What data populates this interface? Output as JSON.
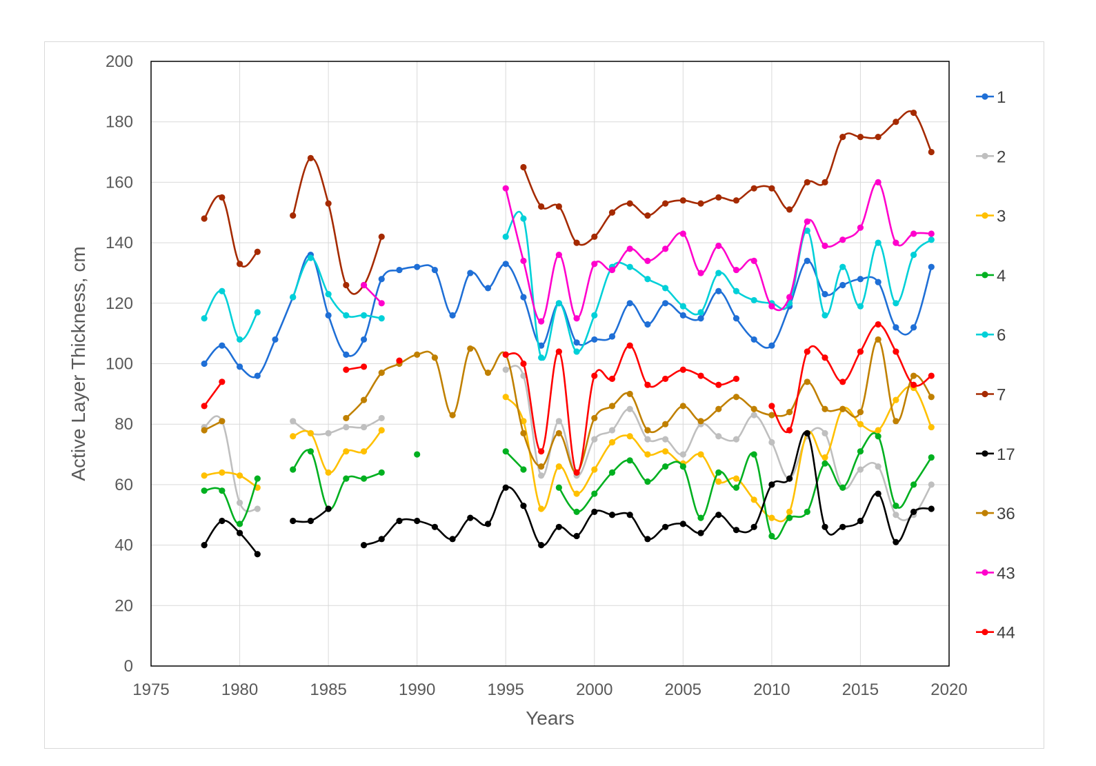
{
  "chart_data": {
    "type": "line",
    "title": "",
    "xlabel": "Years",
    "ylabel": "Active Layer Thickness, cm",
    "xlim": [
      1975,
      2020
    ],
    "ylim": [
      0,
      200
    ],
    "x_ticks": [
      1975,
      1980,
      1985,
      1990,
      1995,
      2000,
      2005,
      2010,
      2015,
      2020
    ],
    "y_ticks": [
      0,
      20,
      40,
      60,
      80,
      100,
      120,
      140,
      160,
      180,
      200
    ],
    "grid": true,
    "legend_position": "right",
    "series": [
      {
        "name": "1",
        "color": "#1f6fd6",
        "x": [
          1978,
          1979,
          1980,
          1981,
          1982,
          1983,
          1984,
          1985,
          1986,
          1987,
          1988,
          1989,
          1990,
          1991,
          1992,
          1993,
          1994,
          1995,
          1996,
          1997,
          1998,
          1999,
          2000,
          2001,
          2002,
          2003,
          2004,
          2005,
          2006,
          2007,
          2008,
          2009,
          2010,
          2011,
          2012,
          2013,
          2014,
          2015,
          2016,
          2017,
          2018,
          2019
        ],
        "y": [
          100,
          106,
          99,
          96,
          108,
          122,
          136,
          116,
          103,
          108,
          128,
          131,
          132,
          131,
          116,
          130,
          125,
          133,
          122,
          106,
          120,
          107,
          108,
          109,
          120,
          113,
          120,
          116,
          115,
          124,
          115,
          108,
          106,
          119,
          134,
          123,
          126,
          128,
          127,
          112,
          112,
          132
        ]
      },
      {
        "name": "2",
        "color": "#bfbfbf",
        "x": [
          1978,
          1979,
          1980,
          1981,
          null,
          1983,
          1984,
          1985,
          1986,
          1987,
          1988,
          null,
          1995,
          1996,
          1997,
          1998,
          1999,
          2000,
          2001,
          2002,
          2003,
          2004,
          2005,
          2006,
          2007,
          2008,
          2009,
          2010,
          2011,
          2012,
          2013,
          2014,
          2015,
          2016,
          2017,
          2018,
          2019
        ],
        "y": [
          79,
          81,
          54,
          52,
          null,
          81,
          77,
          77,
          79,
          79,
          82,
          null,
          98,
          96,
          63,
          81,
          63,
          75,
          78,
          85,
          75,
          75,
          70,
          80,
          76,
          75,
          83,
          74,
          62,
          76,
          77,
          59,
          65,
          66,
          50,
          50,
          60
        ]
      },
      {
        "name": "3",
        "color": "#ffc000",
        "x": [
          1978,
          1979,
          1980,
          1981,
          null,
          1983,
          1984,
          1985,
          1986,
          1987,
          1988,
          null,
          1995,
          1996,
          1997,
          1998,
          1999,
          2000,
          2001,
          2002,
          2003,
          2004,
          2005,
          2006,
          2007,
          2008,
          2009,
          2010,
          2011,
          2012,
          2013,
          2014,
          2015,
          2016,
          2017,
          2018,
          2019
        ],
        "y": [
          63,
          64,
          63,
          59,
          null,
          76,
          77,
          64,
          71,
          71,
          78,
          null,
          89,
          81,
          52,
          66,
          57,
          65,
          74,
          76,
          70,
          71,
          67,
          70,
          61,
          62,
          55,
          49,
          51,
          77,
          69,
          85,
          80,
          78,
          88,
          92,
          79
        ]
      },
      {
        "name": "4",
        "color": "#00b020",
        "x": [
          1978,
          1979,
          1980,
          1981,
          null,
          1983,
          1984,
          1985,
          1986,
          1987,
          1988,
          null,
          1990,
          null,
          1995,
          1996,
          null,
          1998,
          1999,
          2000,
          2001,
          2002,
          2003,
          2004,
          2005,
          2006,
          2007,
          2008,
          2009,
          2010,
          2011,
          2012,
          2013,
          2014,
          2015,
          2016,
          2017,
          2018,
          2019
        ],
        "y": [
          58,
          58,
          47,
          62,
          null,
          65,
          71,
          52,
          62,
          62,
          64,
          null,
          70,
          null,
          71,
          65,
          null,
          59,
          51,
          57,
          64,
          68,
          61,
          66,
          66,
          49,
          64,
          59,
          70,
          43,
          49,
          51,
          67,
          59,
          71,
          76,
          53,
          60,
          69
        ]
      },
      {
        "name": "6",
        "color": "#00d0d8",
        "x": [
          1978,
          1979,
          1980,
          1981,
          null,
          1983,
          1984,
          1985,
          1986,
          1987,
          1988,
          null,
          1995,
          1996,
          1997,
          1998,
          1999,
          2000,
          2001,
          2002,
          2003,
          2004,
          2005,
          2006,
          2007,
          2008,
          2009,
          2010,
          2011,
          2012,
          2013,
          2014,
          2015,
          2016,
          2017,
          2018,
          2019
        ],
        "y": [
          115,
          124,
          108,
          117,
          null,
          122,
          135,
          123,
          116,
          116,
          115,
          null,
          142,
          148,
          102,
          120,
          104,
          116,
          132,
          132,
          128,
          125,
          119,
          117,
          130,
          124,
          121,
          120,
          120,
          144,
          116,
          132,
          119,
          140,
          120,
          136,
          141
        ]
      },
      {
        "name": "7",
        "color": "#a52a00",
        "x": [
          1978,
          1979,
          1980,
          1981,
          null,
          1983,
          1984,
          1985,
          1986,
          1987,
          1988,
          null,
          1996,
          1997,
          1998,
          1999,
          2000,
          2001,
          2002,
          2003,
          2004,
          2005,
          2006,
          2007,
          2008,
          2009,
          2010,
          2011,
          2012,
          2013,
          2014,
          2015,
          2016,
          2017,
          2018,
          2019
        ],
        "y": [
          148,
          155,
          133,
          137,
          null,
          149,
          168,
          153,
          126,
          126,
          142,
          null,
          165,
          152,
          152,
          140,
          142,
          150,
          153,
          149,
          153,
          154,
          153,
          155,
          154,
          158,
          158,
          151,
          160,
          160,
          175,
          175,
          175,
          180,
          183,
          170
        ]
      },
      {
        "name": "17",
        "color": "#000000",
        "x": [
          1978,
          1979,
          1980,
          1981,
          null,
          1983,
          1984,
          1985,
          null,
          1987,
          1988,
          1989,
          1990,
          1991,
          1992,
          1993,
          1994,
          1995,
          1996,
          1997,
          1998,
          1999,
          2000,
          2001,
          2002,
          2003,
          2004,
          2005,
          2006,
          2007,
          2008,
          2009,
          2010,
          2011,
          2012,
          2013,
          2014,
          2015,
          2016,
          2017,
          2018,
          2019
        ],
        "y": [
          40,
          48,
          44,
          37,
          null,
          48,
          48,
          52,
          null,
          40,
          42,
          48,
          48,
          46,
          42,
          49,
          47,
          59,
          53,
          40,
          46,
          43,
          51,
          50,
          50,
          42,
          46,
          47,
          44,
          50,
          45,
          46,
          60,
          62,
          77,
          46,
          46,
          48,
          57,
          41,
          51,
          52
        ]
      },
      {
        "name": "36",
        "color": "#c08000",
        "x": [
          1978,
          1979,
          null,
          1986,
          1987,
          1988,
          1989,
          1990,
          1991,
          1992,
          1993,
          1994,
          1995,
          1996,
          1997,
          1998,
          1999,
          2000,
          2001,
          2002,
          2003,
          2004,
          2005,
          2006,
          2007,
          2008,
          2009,
          2010,
          2011,
          2012,
          2013,
          2014,
          2015,
          2016,
          2017,
          2018,
          2019
        ],
        "y": [
          78,
          81,
          null,
          82,
          88,
          97,
          100,
          103,
          102,
          83,
          105,
          97,
          103,
          77,
          66,
          77,
          64,
          82,
          86,
          90,
          78,
          80,
          86,
          81,
          85,
          89,
          85,
          83,
          84,
          94,
          85,
          85,
          84,
          108,
          81,
          96,
          89
        ]
      },
      {
        "name": "43",
        "color": "#ff00cc",
        "x": [
          1987,
          1988,
          null,
          1995,
          1996,
          1997,
          1998,
          1999,
          2000,
          2001,
          2002,
          2003,
          2004,
          2005,
          2006,
          2007,
          2008,
          2009,
          2010,
          2011,
          2012,
          2013,
          2014,
          2015,
          2016,
          2017,
          2018,
          2019
        ],
        "y": [
          126,
          120,
          null,
          158,
          134,
          114,
          136,
          115,
          133,
          131,
          138,
          134,
          138,
          143,
          130,
          139,
          131,
          134,
          119,
          122,
          147,
          139,
          141,
          145,
          160,
          140,
          143,
          143
        ]
      },
      {
        "name": "44",
        "color": "#ff0000",
        "x": [
          1978,
          1979,
          null,
          1986,
          1987,
          null,
          1989,
          null,
          1995,
          1996,
          1997,
          1998,
          1999,
          2000,
          2001,
          2002,
          2003,
          2004,
          2005,
          2006,
          2007,
          2008,
          null,
          2010,
          2011,
          2012,
          2013,
          2014,
          2015,
          2016,
          2017,
          2018,
          2019
        ],
        "y": [
          86,
          94,
          null,
          98,
          99,
          null,
          101,
          null,
          103,
          100,
          71,
          104,
          64,
          96,
          95,
          106,
          93,
          95,
          98,
          96,
          93,
          95,
          null,
          86,
          78,
          104,
          102,
          94,
          104,
          113,
          104,
          93,
          96
        ]
      }
    ]
  }
}
